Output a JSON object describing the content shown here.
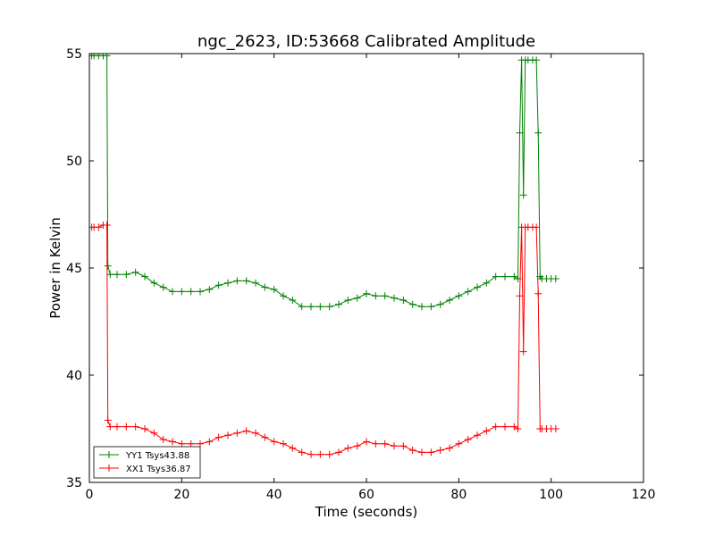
{
  "chart_data": {
    "type": "line",
    "title": "ngc_2623, ID:53668 Calibrated Amplitude",
    "xlabel": "Time (seconds)",
    "ylabel": "Power in Kelvin",
    "xlim": [
      0,
      120
    ],
    "ylim": [
      35,
      55
    ],
    "xticks": [
      0,
      20,
      40,
      60,
      80,
      100,
      120
    ],
    "yticks": [
      35,
      40,
      45,
      50,
      55
    ],
    "legend_position": "lower-left",
    "grid": false,
    "series": [
      {
        "name": "YY1 Tsys43.88",
        "color": "#008000",
        "marker": "+",
        "x": [
          0.5,
          1,
          2,
          3,
          3.8,
          4,
          4.5,
          6,
          8,
          10,
          12,
          14,
          16,
          18,
          20,
          22,
          24,
          26,
          28,
          30,
          32,
          34,
          36,
          38,
          40,
          42,
          44,
          46,
          48,
          50,
          52,
          54,
          56,
          58,
          60,
          62,
          64,
          66,
          68,
          70,
          72,
          74,
          76,
          78,
          80,
          82,
          84,
          86,
          88,
          90,
          92,
          92.8,
          93.2,
          93.6,
          94,
          94.4,
          95,
          96,
          96.8,
          97.2,
          97.6,
          98,
          99,
          100,
          101
        ],
        "values": [
          54.9,
          54.9,
          54.9,
          54.9,
          54.9,
          45.1,
          44.7,
          44.7,
          44.7,
          44.8,
          44.6,
          44.3,
          44.1,
          43.9,
          43.9,
          43.9,
          43.9,
          44.0,
          44.2,
          44.3,
          44.4,
          44.4,
          44.3,
          44.1,
          44.0,
          43.7,
          43.5,
          43.2,
          43.2,
          43.2,
          43.2,
          43.3,
          43.5,
          43.6,
          43.8,
          43.7,
          43.7,
          43.6,
          43.5,
          43.3,
          43.2,
          43.2,
          43.3,
          43.5,
          43.7,
          43.9,
          44.1,
          44.3,
          44.6,
          44.6,
          44.6,
          44.5,
          51.3,
          54.7,
          48.4,
          54.7,
          54.7,
          54.7,
          54.7,
          51.3,
          44.6,
          44.5,
          44.5,
          44.5,
          44.5
        ]
      },
      {
        "name": "XX1 Tsys36.87",
        "color": "#ff0000",
        "marker": "+",
        "x": [
          0.5,
          1,
          2,
          3,
          3.8,
          4,
          4.5,
          6,
          8,
          10,
          12,
          14,
          16,
          18,
          20,
          22,
          24,
          26,
          28,
          30,
          32,
          34,
          36,
          38,
          40,
          42,
          44,
          46,
          48,
          50,
          52,
          54,
          56,
          58,
          60,
          62,
          64,
          66,
          68,
          70,
          72,
          74,
          76,
          78,
          80,
          82,
          84,
          86,
          88,
          90,
          92,
          92.8,
          93.2,
          93.6,
          94,
          94.4,
          95,
          96,
          96.8,
          97.2,
          97.6,
          98,
          99,
          100,
          101
        ],
        "values": [
          46.9,
          46.9,
          46.9,
          47.0,
          47.0,
          37.9,
          37.6,
          37.6,
          37.6,
          37.6,
          37.5,
          37.3,
          37.0,
          36.9,
          36.8,
          36.8,
          36.8,
          36.9,
          37.1,
          37.2,
          37.3,
          37.4,
          37.3,
          37.1,
          36.9,
          36.8,
          36.6,
          36.4,
          36.3,
          36.3,
          36.3,
          36.4,
          36.6,
          36.7,
          36.9,
          36.8,
          36.8,
          36.7,
          36.7,
          36.5,
          36.4,
          36.4,
          36.5,
          36.6,
          36.8,
          37.0,
          37.2,
          37.4,
          37.6,
          37.6,
          37.6,
          37.5,
          43.7,
          46.9,
          41.1,
          46.9,
          46.9,
          46.9,
          46.9,
          43.8,
          37.5,
          37.5,
          37.5,
          37.5,
          37.5
        ]
      }
    ]
  }
}
